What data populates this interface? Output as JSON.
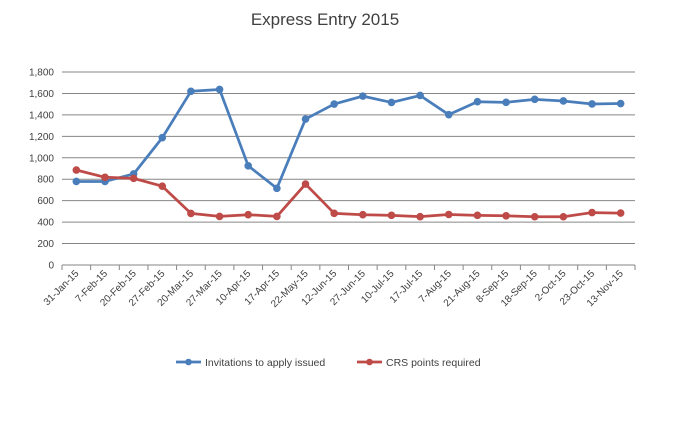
{
  "chart_data": {
    "type": "line",
    "title": "Express Entry 2015",
    "xlabel": "",
    "ylabel": "",
    "ylim": [
      0,
      1800
    ],
    "yticks": [
      0,
      200,
      400,
      600,
      800,
      1000,
      1200,
      1400,
      1600,
      1800
    ],
    "ytick_labels": [
      "0",
      "200",
      "400",
      "600",
      "800",
      "1,000",
      "1,200",
      "1,400",
      "1,600",
      "1,800"
    ],
    "grid": true,
    "legend_position": "bottom",
    "categories": [
      "31-Jan-15",
      "7-Feb-15",
      "20-Feb-15",
      "27-Feb-15",
      "20-Mar-15",
      "27-Mar-15",
      "10-Apr-15",
      "17-Apr-15",
      "22-May-15",
      "12-Jun-15",
      "27-Jun-15",
      "10-Jul-15",
      "17-Jul-15",
      "7-Aug-15",
      "21-Aug-15",
      "8-Sep-15",
      "18-Sep-15",
      "2-Oct-15",
      "23-Oct-15",
      "13-Nov-15"
    ],
    "series": [
      {
        "name": "Invitations to apply issued",
        "color": "#4a7ebb",
        "values": [
          779,
          779,
          849,
          1187,
          1620,
          1637,
          925,
          715,
          1361,
          1501,
          1575,
          1516,
          1581,
          1402,
          1523,
          1517,
          1545,
          1530,
          1502,
          1506
        ]
      },
      {
        "name": "CRS points required",
        "color": "#be4b48",
        "values": [
          886,
          818,
          808,
          735,
          481,
          453,
          469,
          453,
          755,
          482,
          469,
          463,
          451,
          471,
          463,
          459,
          450,
          450,
          489,
          484
        ]
      }
    ]
  }
}
